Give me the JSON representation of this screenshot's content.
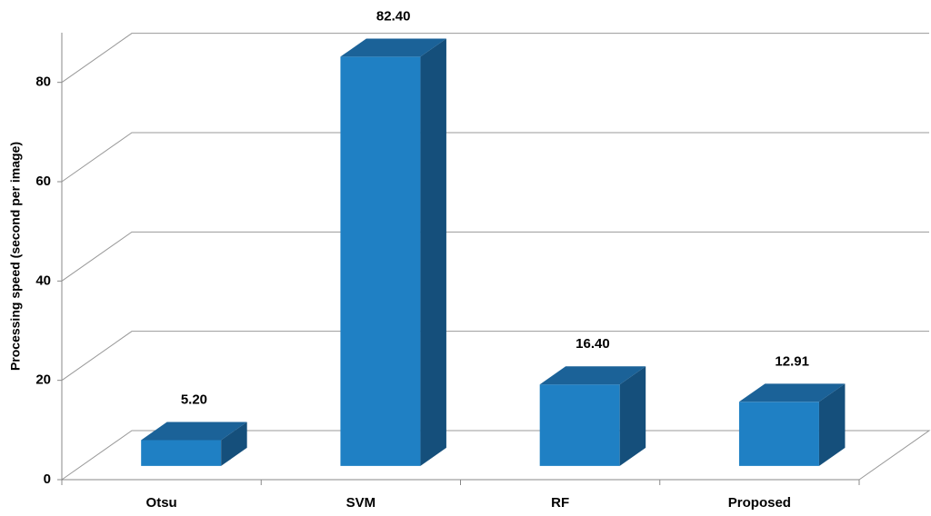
{
  "chart_data": {
    "type": "bar3d",
    "y_label": "Processing speed (second per image)",
    "categories": [
      "Otsu",
      "SVM",
      "RF",
      "Proposed"
    ],
    "values": [
      5.2,
      82.4,
      16.4,
      12.91
    ],
    "value_labels": [
      "5.20",
      "82.40",
      "16.40",
      "12.91"
    ],
    "color": "#1f80c4",
    "ylim": [
      0,
      90
    ],
    "yticks": [
      0,
      20,
      40,
      60,
      80
    ],
    "grid": true
  }
}
